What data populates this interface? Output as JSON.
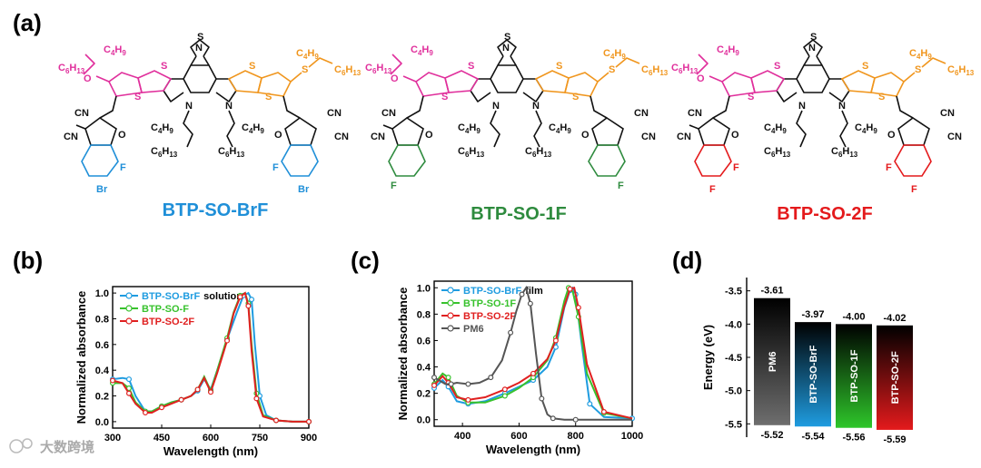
{
  "figure": {
    "panel_labels": [
      "(a)",
      "(b)",
      "(c)",
      "(d)"
    ],
    "watermark": "大数跨境"
  },
  "structures": {
    "compounds": [
      {
        "name": "BTP-SO-BrF",
        "color": "#1f8fd8",
        "end_group": [
          "F",
          "Br"
        ]
      },
      {
        "name": "BTP-SO-1F",
        "color": "#2e8b3e",
        "end_group": [
          "F"
        ]
      },
      {
        "name": "BTP-SO-2F",
        "color": "#e41a1c",
        "end_group": [
          "F",
          "F"
        ]
      }
    ],
    "labels": {
      "c4h9": "C4H9",
      "c6h13": "C6H13",
      "cn": "CN",
      "n": "N",
      "s": "S",
      "o": "O"
    }
  },
  "chart_data": [
    {
      "type": "line",
      "panel": "(b)",
      "title": "",
      "xlabel": "Wavelength (nm)",
      "ylabel": "Normalized absorbance",
      "xlim": [
        300,
        900
      ],
      "ylim": [
        -0.05,
        1.05
      ],
      "xticks": [
        300,
        450,
        600,
        750,
        900
      ],
      "yticks": [
        0.0,
        0.2,
        0.4,
        0.6,
        0.8,
        1.0
      ],
      "legend_suffix": "solution",
      "series": [
        {
          "name": "BTP-SO-BrF",
          "color": "#1f9ce0",
          "x": [
            300,
            330,
            350,
            370,
            400,
            420,
            450,
            480,
            510,
            540,
            560,
            580,
            600,
            620,
            650,
            680,
            700,
            715,
            725,
            735,
            750,
            770,
            800,
            850,
            900
          ],
          "y": [
            0.33,
            0.34,
            0.33,
            0.2,
            0.08,
            0.08,
            0.12,
            0.15,
            0.17,
            0.2,
            0.24,
            0.33,
            0.25,
            0.4,
            0.64,
            0.85,
            0.98,
            1.0,
            0.95,
            0.6,
            0.2,
            0.05,
            0.01,
            0.0,
            0.0
          ]
        },
        {
          "name": "BTP-SO-F",
          "color": "#38c22d",
          "x": [
            300,
            330,
            350,
            370,
            400,
            420,
            450,
            480,
            510,
            540,
            560,
            580,
            600,
            620,
            650,
            670,
            690,
            705,
            715,
            725,
            740,
            760,
            800,
            850,
            900
          ],
          "y": [
            0.3,
            0.3,
            0.26,
            0.15,
            0.08,
            0.08,
            0.12,
            0.15,
            0.17,
            0.2,
            0.25,
            0.35,
            0.24,
            0.4,
            0.65,
            0.85,
            0.98,
            1.0,
            0.92,
            0.6,
            0.22,
            0.05,
            0.01,
            0.0,
            0.0
          ]
        },
        {
          "name": "BTP-SO-2F",
          "color": "#e02020",
          "x": [
            300,
            330,
            350,
            370,
            400,
            420,
            450,
            480,
            510,
            540,
            560,
            580,
            600,
            620,
            650,
            670,
            690,
            705,
            715,
            725,
            740,
            760,
            800,
            850,
            900
          ],
          "y": [
            0.32,
            0.3,
            0.22,
            0.14,
            0.07,
            0.07,
            0.11,
            0.14,
            0.17,
            0.2,
            0.25,
            0.34,
            0.23,
            0.38,
            0.63,
            0.84,
            0.97,
            1.0,
            0.9,
            0.55,
            0.18,
            0.04,
            0.01,
            0.0,
            0.0
          ]
        }
      ]
    },
    {
      "type": "line",
      "panel": "(c)",
      "title": "",
      "xlabel": "Wavelength (nm)",
      "ylabel": "Normalized absorbance",
      "xlim": [
        300,
        1000
      ],
      "ylim": [
        -0.05,
        1.05
      ],
      "xticks": [
        400,
        600,
        800,
        1000
      ],
      "yticks": [
        0.0,
        0.2,
        0.4,
        0.6,
        0.8,
        1.0
      ],
      "legend_suffix": "film",
      "series": [
        {
          "name": "BTP-SO-BrF",
          "color": "#1f9ce0",
          "x": [
            300,
            330,
            350,
            380,
            420,
            480,
            550,
            600,
            650,
            700,
            730,
            760,
            780,
            790,
            800,
            820,
            850,
            900,
            1000
          ],
          "y": [
            0.24,
            0.3,
            0.25,
            0.14,
            0.12,
            0.14,
            0.2,
            0.25,
            0.3,
            0.4,
            0.55,
            0.85,
            0.98,
            1.0,
            0.95,
            0.6,
            0.12,
            0.02,
            0.01
          ]
        },
        {
          "name": "BTP-SO-1F",
          "color": "#38c22d",
          "x": [
            300,
            330,
            350,
            380,
            420,
            480,
            550,
            600,
            650,
            700,
            730,
            760,
            775,
            790,
            810,
            840,
            900,
            1000
          ],
          "y": [
            0.27,
            0.35,
            0.32,
            0.18,
            0.13,
            0.13,
            0.18,
            0.24,
            0.32,
            0.45,
            0.62,
            0.9,
            1.0,
            0.97,
            0.78,
            0.35,
            0.05,
            0.01
          ]
        },
        {
          "name": "BTP-SO-2F",
          "color": "#e02020",
          "x": [
            300,
            330,
            350,
            380,
            420,
            480,
            550,
            600,
            650,
            700,
            730,
            760,
            780,
            795,
            810,
            840,
            900,
            1000
          ],
          "y": [
            0.26,
            0.33,
            0.28,
            0.17,
            0.15,
            0.17,
            0.23,
            0.28,
            0.35,
            0.46,
            0.6,
            0.86,
            0.99,
            1.0,
            0.85,
            0.42,
            0.06,
            0.01
          ]
        },
        {
          "name": "PM6",
          "color": "#555555",
          "x": [
            300,
            340,
            360,
            380,
            420,
            460,
            500,
            540,
            570,
            590,
            610,
            625,
            640,
            660,
            680,
            700,
            720,
            760,
            800,
            1000
          ],
          "y": [
            0.32,
            0.27,
            0.27,
            0.28,
            0.27,
            0.28,
            0.32,
            0.45,
            0.66,
            0.82,
            0.95,
            1.0,
            0.88,
            0.5,
            0.16,
            0.04,
            0.01,
            0.0,
            0.0,
            0.0
          ]
        }
      ]
    },
    {
      "type": "bar",
      "panel": "(d)",
      "title": "",
      "xlabel": "",
      "ylabel": "Energy (eV)",
      "ylim": [
        -5.7,
        -3.3
      ],
      "yticks": [
        -3.5,
        -4.0,
        -4.5,
        -5.0,
        -5.5
      ],
      "ytick_labels": [
        "-3.5",
        "-4.0",
        "-4.5",
        "-5.0",
        "-5.5"
      ],
      "categories": [
        "PM6",
        "BTP-SO-BrF",
        "BTP-SO-1F",
        "BTP-SO-2F"
      ],
      "lumo": [
        -3.61,
        -3.97,
        -4.0,
        -4.02
      ],
      "homo": [
        -5.52,
        -5.54,
        -5.56,
        -5.59
      ],
      "lumo_labels": [
        "-3.61",
        "-3.97",
        "-4.00",
        "-4.02"
      ],
      "homo_labels": [
        "-5.52",
        "-5.54",
        "-5.56",
        "-5.59"
      ],
      "colors": [
        "#6e6e6e",
        "#1f9ce0",
        "#2ec62a",
        "#e41a1c"
      ]
    }
  ]
}
